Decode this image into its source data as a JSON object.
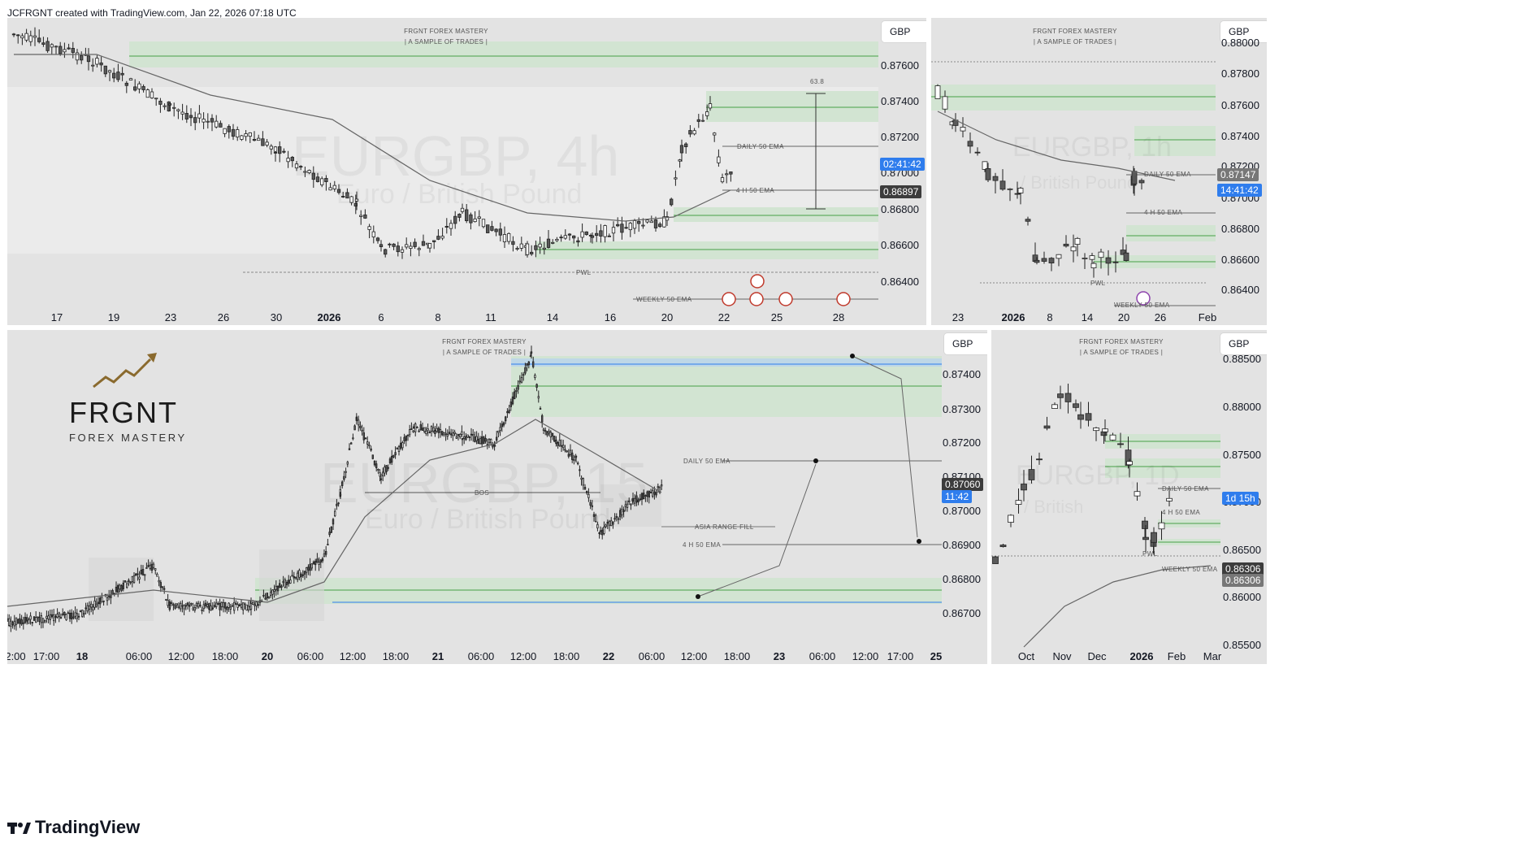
{
  "header": {
    "text": "JCFRGNT created with TradingView.com, Jan 22, 2026 07:18 UTC"
  },
  "footer": {
    "brand": "TradingView"
  },
  "colors": {
    "zone_green": "#cfe3cf",
    "zone_line": "#46a046",
    "blue_line": "#2f7ded",
    "tag_dark": "#3c3c3c",
    "tag_blue": "#2f7ded",
    "logo_gold": "#8a6a2e"
  },
  "logo": {
    "title": "FRGNT",
    "subtitle": "FOREX MASTERY"
  },
  "panel1": {
    "currency": "GBP",
    "brand_line1": "FRGNT FOREX MASTERY",
    "brand_line2": "|  A SAMPLE OF TRADES  |",
    "watermark": "EURGBP, 4h",
    "watermark_sub": "Euro / British Pound",
    "price_ticks": [
      "0.87600",
      "0.87400",
      "0.87200",
      "0.87000",
      "0.86800",
      "0.86600",
      "0.86400"
    ],
    "time_ticks": [
      "17",
      "19",
      "23",
      "26",
      "30",
      "2026",
      "6",
      "8",
      "11",
      "14",
      "16",
      "20",
      "22",
      "25",
      "28"
    ],
    "tag_countdown": "02:41:42",
    "tag_price": "0.86897",
    "measure": "63.8",
    "labels": {
      "daily_ema": "DAILY 50 EMA",
      "h4_ema": "4 H 50 EMA",
      "weekly_ema": "WEEKLY 50 EMA",
      "pwl": "PWL"
    }
  },
  "panel2": {
    "currency": "GBP",
    "brand_line1": "FRGNT FOREX MASTERY",
    "brand_line2": "|  A SAMPLE OF TRADES  |",
    "watermark": "EURGBP, 1h",
    "watermark_sub": "/ British Pound",
    "price_ticks": [
      "0.88000",
      "0.87800",
      "0.87600",
      "0.87400",
      "0.87200",
      "0.87000",
      "0.86800",
      "0.86600",
      "0.86400"
    ],
    "time_ticks": [
      "23",
      "2026",
      "8",
      "14",
      "20",
      "26",
      "Feb"
    ],
    "tag_price": "0.87147",
    "tag_countdown": "14:41:42",
    "labels": {
      "daily_ema": "DAILY 50 EMA",
      "h4_ema": "4 H 50 EMA",
      "weekly_ema": "WEEKLY 50 EMA",
      "pwl": "PWL"
    }
  },
  "panel3": {
    "currency": "GBP",
    "brand_line1": "FRGNT FOREX MASTERY",
    "brand_line2": "|  A SAMPLE OF TRADES  |",
    "watermark": "EURGBP, 15",
    "watermark_sub": "Euro / British Pound",
    "price_ticks": [
      "0.87400",
      "0.87300",
      "0.87200",
      "0.87100",
      "0.87000",
      "0.86900",
      "0.86800",
      "0.86700"
    ],
    "time_ticks": [
      "2:00",
      "17:00",
      "18",
      "06:00",
      "12:00",
      "18:00",
      "20",
      "06:00",
      "12:00",
      "18:00",
      "21",
      "06:00",
      "12:00",
      "18:00",
      "22",
      "06:00",
      "12:00",
      "18:00",
      "23",
      "06:00",
      "12:00",
      "17:00",
      "25"
    ],
    "tag_price": "0.87060",
    "tag_countdown": "11:42",
    "labels": {
      "bos": "BOS",
      "asia": "ASIA RANGE FILL",
      "daily_ema": "DAILY 50 EMA",
      "h4_ema": "4 H 50 EMA"
    }
  },
  "panel4": {
    "currency": "GBP",
    "brand_line1": "FRGNT FOREX MASTERY",
    "brand_line2": "|  A SAMPLE OF TRADES  |",
    "watermark": "EURGBP, 1D",
    "watermark_sub": "/ British",
    "price_ticks": [
      "0.88500",
      "0.88000",
      "0.87500",
      "0.87000",
      "0.86500",
      "0.86000",
      "0.85500"
    ],
    "time_ticks": [
      "Oct",
      "Nov",
      "Dec",
      "2026",
      "Feb",
      "Mar"
    ],
    "tag_countdown": "1d 15h",
    "tag_price1": "0.86306",
    "tag_price2": "0.86306",
    "labels": {
      "daily_ema": "DAILY 50 EMA",
      "h4_ema": "4 H 50 EMA",
      "weekly_ema": "WEEKLY 50 EMA",
      "pwl": "PWL"
    }
  }
}
